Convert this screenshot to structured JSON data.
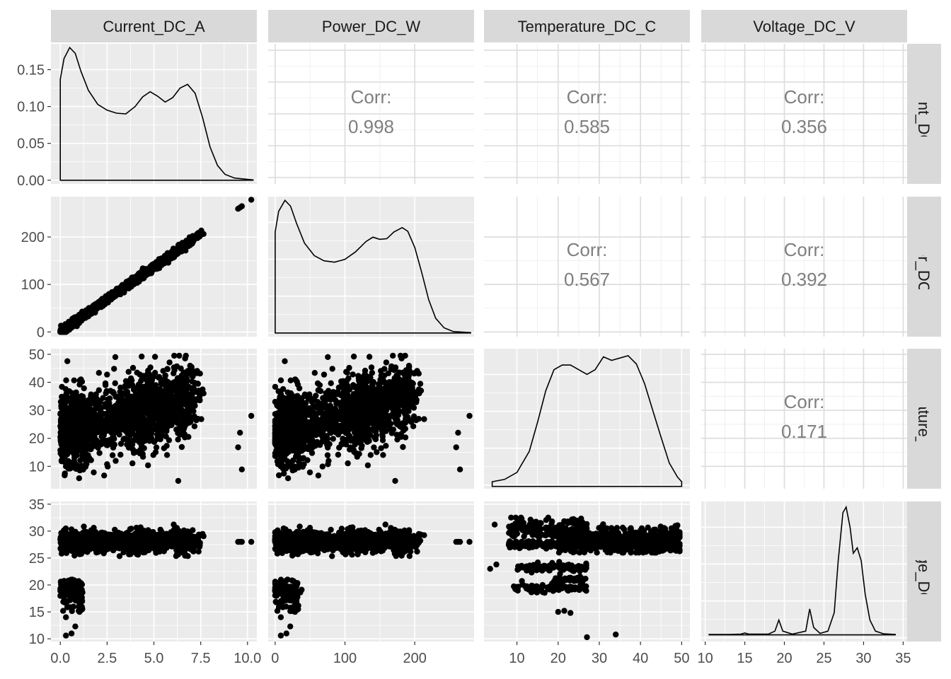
{
  "variables": [
    "Current_DC_A",
    "Power_DC_W",
    "Temperature_DC_C",
    "Voltage_DC_V"
  ],
  "chart_data": {
    "type": "scatter",
    "title": "",
    "layout": "pairs-matrix",
    "variables": [
      "Current_DC_A",
      "Power_DC_W",
      "Temperature_DC_C",
      "Voltage_DC_V"
    ],
    "axes": {
      "Current_DC_A": {
        "range": [
          -0.5,
          10.5
        ],
        "ticks": [
          0.0,
          2.5,
          5.0,
          7.5,
          10.0
        ],
        "tick_labels": [
          "0.0",
          "2.5",
          "5.0",
          "7.5",
          "10.0"
        ]
      },
      "Power_DC_W": {
        "range": [
          -10,
          285
        ],
        "ticks": [
          0,
          100,
          200
        ],
        "tick_labels": [
          "0",
          "100",
          "200"
        ]
      },
      "Temperature_DC_C": {
        "range": [
          2,
          52
        ],
        "ticks": [
          10,
          20,
          30,
          40,
          50
        ],
        "tick_labels": [
          "10",
          "20",
          "30",
          "40",
          "50"
        ]
      },
      "Voltage_DC_V": {
        "range": [
          9.5,
          35.5
        ],
        "ticks": [
          10,
          15,
          20,
          25,
          30,
          35
        ],
        "tick_labels": [
          "10",
          "15",
          "20",
          "25",
          "30",
          "35"
        ]
      }
    },
    "density_axis": {
      "range": [
        -0.005,
        0.185
      ],
      "ticks": [
        0.0,
        0.05,
        0.1,
        0.15
      ],
      "tick_labels": [
        "0.00",
        "0.05",
        "0.10",
        "0.15"
      ]
    },
    "correlations": [
      {
        "row": "Current_DC_A",
        "col": "Power_DC_W",
        "label": "Corr:",
        "value": "0.998"
      },
      {
        "row": "Current_DC_A",
        "col": "Temperature_DC_C",
        "label": "Corr:",
        "value": "0.585"
      },
      {
        "row": "Current_DC_A",
        "col": "Voltage_DC_V",
        "label": "Corr:",
        "value": "0.356"
      },
      {
        "row": "Power_DC_W",
        "col": "Temperature_DC_C",
        "label": "Corr:",
        "value": "0.567"
      },
      {
        "row": "Power_DC_W",
        "col": "Voltage_DC_V",
        "label": "Corr:",
        "value": "0.392"
      },
      {
        "row": "Temperature_DC_C",
        "col": "Voltage_DC_V",
        "label": "Corr:",
        "value": "0.171"
      }
    ],
    "densities": {
      "Current_DC_A": [
        [
          0,
          0.137
        ],
        [
          0.2,
          0.165
        ],
        [
          0.5,
          0.18
        ],
        [
          0.8,
          0.172
        ],
        [
          1.1,
          0.148
        ],
        [
          1.5,
          0.122
        ],
        [
          2.0,
          0.103
        ],
        [
          2.5,
          0.095
        ],
        [
          3.0,
          0.091
        ],
        [
          3.5,
          0.09
        ],
        [
          4.0,
          0.1
        ],
        [
          4.4,
          0.113
        ],
        [
          4.8,
          0.12
        ],
        [
          5.2,
          0.114
        ],
        [
          5.6,
          0.106
        ],
        [
          6.0,
          0.112
        ],
        [
          6.4,
          0.125
        ],
        [
          6.8,
          0.13
        ],
        [
          7.2,
          0.118
        ],
        [
          7.6,
          0.085
        ],
        [
          8.0,
          0.045
        ],
        [
          8.4,
          0.02
        ],
        [
          8.8,
          0.008
        ],
        [
          9.3,
          0.003
        ],
        [
          10.3,
          0.0005
        ]
      ],
      "Power_DC_W": [
        [
          0,
          0.137
        ],
        [
          5,
          0.165
        ],
        [
          14,
          0.18
        ],
        [
          22,
          0.172
        ],
        [
          31,
          0.148
        ],
        [
          42,
          0.122
        ],
        [
          56,
          0.105
        ],
        [
          70,
          0.098
        ],
        [
          85,
          0.096
        ],
        [
          100,
          0.1
        ],
        [
          115,
          0.11
        ],
        [
          130,
          0.124
        ],
        [
          140,
          0.13
        ],
        [
          150,
          0.127
        ],
        [
          160,
          0.128
        ],
        [
          170,
          0.137
        ],
        [
          182,
          0.143
        ],
        [
          190,
          0.138
        ],
        [
          200,
          0.116
        ],
        [
          210,
          0.082
        ],
        [
          220,
          0.045
        ],
        [
          230,
          0.02
        ],
        [
          242,
          0.007
        ],
        [
          255,
          0.002
        ],
        [
          280,
          0.0005
        ]
      ],
      "Temperature_DC_C": [
        [
          4,
          0.004
        ],
        [
          7,
          0.006
        ],
        [
          10,
          0.012
        ],
        [
          13,
          0.03
        ],
        [
          15,
          0.055
        ],
        [
          17,
          0.082
        ],
        [
          19,
          0.1
        ],
        [
          21,
          0.104
        ],
        [
          23,
          0.104
        ],
        [
          25,
          0.1
        ],
        [
          27,
          0.096
        ],
        [
          29,
          0.1
        ],
        [
          31,
          0.111
        ],
        [
          33,
          0.108
        ],
        [
          35,
          0.11
        ],
        [
          37,
          0.112
        ],
        [
          39,
          0.105
        ],
        [
          41,
          0.088
        ],
        [
          43,
          0.065
        ],
        [
          45,
          0.042
        ],
        [
          47,
          0.02
        ],
        [
          49,
          0.008
        ],
        [
          50,
          0.004
        ]
      ],
      "Voltage_DC_V": [
        [
          10.5,
          0.001
        ],
        [
          13,
          0.001
        ],
        [
          14.5,
          0.002
        ],
        [
          15,
          0.005
        ],
        [
          15.5,
          0.002
        ],
        [
          18,
          0.002
        ],
        [
          18.8,
          0.01
        ],
        [
          19.3,
          0.04
        ],
        [
          19.8,
          0.01
        ],
        [
          21,
          0.002
        ],
        [
          22.7,
          0.01
        ],
        [
          23.2,
          0.07
        ],
        [
          23.7,
          0.02
        ],
        [
          24.5,
          0.004
        ],
        [
          25.5,
          0.01
        ],
        [
          26.3,
          0.06
        ],
        [
          26.8,
          0.2
        ],
        [
          27.4,
          0.33
        ],
        [
          27.8,
          0.345
        ],
        [
          28.3,
          0.29
        ],
        [
          28.7,
          0.22
        ],
        [
          29.2,
          0.235
        ],
        [
          29.7,
          0.2
        ],
        [
          30.2,
          0.11
        ],
        [
          30.8,
          0.04
        ],
        [
          31.5,
          0.01
        ],
        [
          32.5,
          0.003
        ],
        [
          34,
          0.001
        ]
      ]
    },
    "scatter_summary": {
      "Current_DC_A_vs_Power_DC_W": "linear, Power ≈ 27.5 × Current",
      "Temperature_vs_Current": "cloud, mean temp rises from ~23 to ~35 as current rises",
      "Voltage_vs_Current": "mostly 27–30 V, low-voltage clusters near 19–20 V at low current"
    }
  }
}
